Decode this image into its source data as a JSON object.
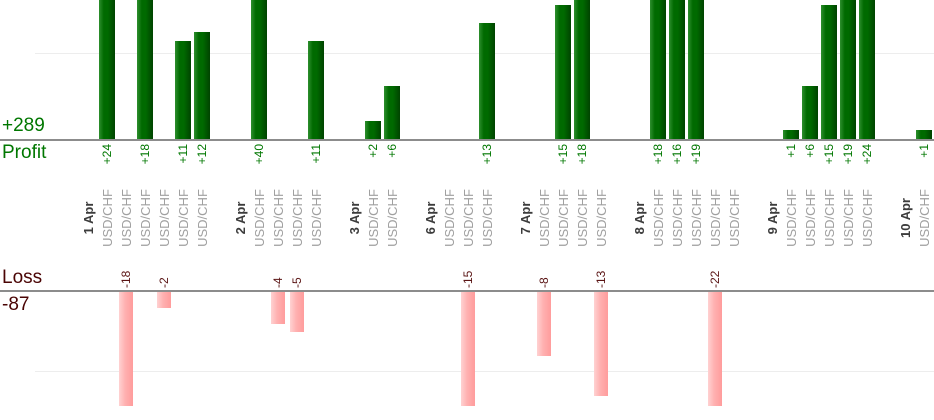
{
  "summary": {
    "profit_total": "+289",
    "profit_label": "Profit",
    "loss_label": "Loss",
    "loss_total": "-87"
  },
  "colors": {
    "profit_bar_light": "#2e8f2e",
    "profit_bar": "#006a00",
    "profit_bar_dark": "#004300",
    "loss_bar_light": "#ffd2d2",
    "loss_bar": "#ffb0b0",
    "loss_bar_dark": "#ff9c9c",
    "profit_text": "#007700",
    "loss_text": "#5a1414",
    "summary_profit": "#007700",
    "summary_loss": "#4a0404",
    "date_text": "#3c3c3c",
    "symbol_text": "#a0a0a0",
    "axis_line": "#8c8c8c",
    "gridline": "#ededed"
  },
  "chart_data": {
    "type": "bar",
    "orientation": "vertical-grouped-by-day",
    "positive_axis_label": "Profit",
    "positive_total": "+289",
    "negative_axis_label": "Loss",
    "negative_total": "-87",
    "gridline_values": [
      10,
      -10
    ],
    "note": "Profit bars clipped at top of visible area (values > ~15); loss bars clipped at bottom of loss plot area (values < -14). Zero-value trades show a symbol label but no bar.",
    "groups": [
      {
        "date": "1 Apr",
        "trades": [
          {
            "symbol": "USD/CHF",
            "value": 24
          },
          {
            "symbol": "USD/CHF",
            "value": -18
          },
          {
            "symbol": "USD/CHF",
            "value": 18
          },
          {
            "symbol": "USD/CHF",
            "value": -2
          },
          {
            "symbol": "USD/CHF",
            "value": 11
          },
          {
            "symbol": "USD/CHF",
            "value": 12
          }
        ]
      },
      {
        "date": "2 Apr",
        "trades": [
          {
            "symbol": "USD/CHF",
            "value": 40
          },
          {
            "symbol": "USD/CHF",
            "value": -4
          },
          {
            "symbol": "USD/CHF",
            "value": -5
          },
          {
            "symbol": "USD/CHF",
            "value": 11
          }
        ]
      },
      {
        "date": "3 Apr",
        "trades": [
          {
            "symbol": "USD/CHF",
            "value": 2
          },
          {
            "symbol": "USD/CHF",
            "value": 6
          }
        ]
      },
      {
        "date": "6 Apr",
        "trades": [
          {
            "symbol": "USD/CHF",
            "value": 0
          },
          {
            "symbol": "USD/CHF",
            "value": -15
          },
          {
            "symbol": "USD/CHF",
            "value": 13
          }
        ]
      },
      {
        "date": "7 Apr",
        "trades": [
          {
            "symbol": "USD/CHF",
            "value": -8
          },
          {
            "symbol": "USD/CHF",
            "value": 15
          },
          {
            "symbol": "USD/CHF",
            "value": 18
          },
          {
            "symbol": "USD/CHF",
            "value": -13
          }
        ]
      },
      {
        "date": "8 Apr",
        "trades": [
          {
            "symbol": "USD/CHF",
            "value": 18
          },
          {
            "symbol": "USD/CHF",
            "value": 16
          },
          {
            "symbol": "USD/CHF",
            "value": 19
          },
          {
            "symbol": "USD/CHF",
            "value": -22
          },
          {
            "symbol": "USD/CHF",
            "value": 0
          }
        ]
      },
      {
        "date": "9 Apr",
        "trades": [
          {
            "symbol": "USD/CHF",
            "value": 1
          },
          {
            "symbol": "USD/CHF",
            "value": 6
          },
          {
            "symbol": "USD/CHF",
            "value": 15
          },
          {
            "symbol": "USD/CHF",
            "value": 19
          },
          {
            "symbol": "USD/CHF",
            "value": 24
          }
        ]
      },
      {
        "date": "10 Apr",
        "trades": [
          {
            "symbol": "USD/CHF",
            "value": 1
          }
        ]
      }
    ]
  }
}
